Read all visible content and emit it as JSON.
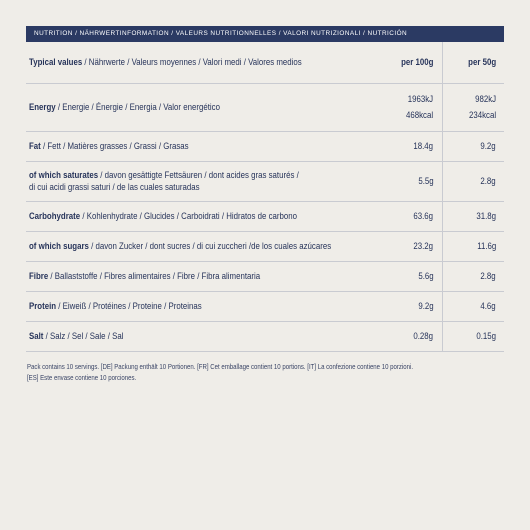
{
  "header": {
    "title": "NUTRITION / NÄHRWERTINFORMATION / VALEURS NUTRITIONNELLES / VALORI NUTRIZIONALI / NUTRICIÓN"
  },
  "table": {
    "columns": {
      "label_bold": "Typical values",
      "label_rest": " / Nährwerte / Valeurs moyennes / Valori medi / Valores medios",
      "per100": "per 100g",
      "per50": "per 50g"
    },
    "rows": [
      {
        "bold": "Energy",
        "rest": " / Energie / Énergie / Energia / Valor energético",
        "per100_line1": "1963kJ",
        "per100_line2": "468kcal",
        "per50_line1": "982kJ",
        "per50_line2": "234kcal"
      },
      {
        "bold": "Fat",
        "rest": " / Fett / Matières grasses / Grassi / Grasas",
        "per100": "18.4g",
        "per50": "9.2g"
      },
      {
        "bold": "of which saturates",
        "rest": " / davon gesättigte Fettsäuren / dont acides gras saturés /",
        "rest2": "di cui acidi grassi saturi / de las cuales saturadas",
        "per100": "5.5g",
        "per50": "2.8g"
      },
      {
        "bold": "Carbohydrate",
        "rest": " / Kohlenhydrate / Glucides / Carboidrati / Hidratos de carbono",
        "per100": "63.6g",
        "per50": "31.8g"
      },
      {
        "bold": "of which sugars",
        "rest": " / davon Zucker / dont sucres / di cui zuccheri /de los cuales azúcares",
        "per100": "23.2g",
        "per50": "11.6g"
      },
      {
        "bold": "Fibre",
        "rest": " / Ballaststoffe / Fibres alimentaires / Fibre / Fibra alimentaria",
        "per100": "5.6g",
        "per50": "2.8g"
      },
      {
        "bold": "Protein",
        "rest": " / Eiweiß / Protéines / Proteine / Proteinas",
        "per100": "9.2g",
        "per50": "4.6g"
      },
      {
        "bold": "Salt",
        "rest": " / Salz / Sel / Sale / Sal",
        "per100": "0.28g",
        "per50": "0.15g"
      }
    ]
  },
  "footnote": {
    "line1": "Pack contains 10 servings. [DE] Packung enthält 10 Portionen. [FR] Cet emballage contient 10 portions. [IT] La confezione contiene 10 porzioni.",
    "line2": "[ES] Este envase contiene 10 porciones."
  }
}
